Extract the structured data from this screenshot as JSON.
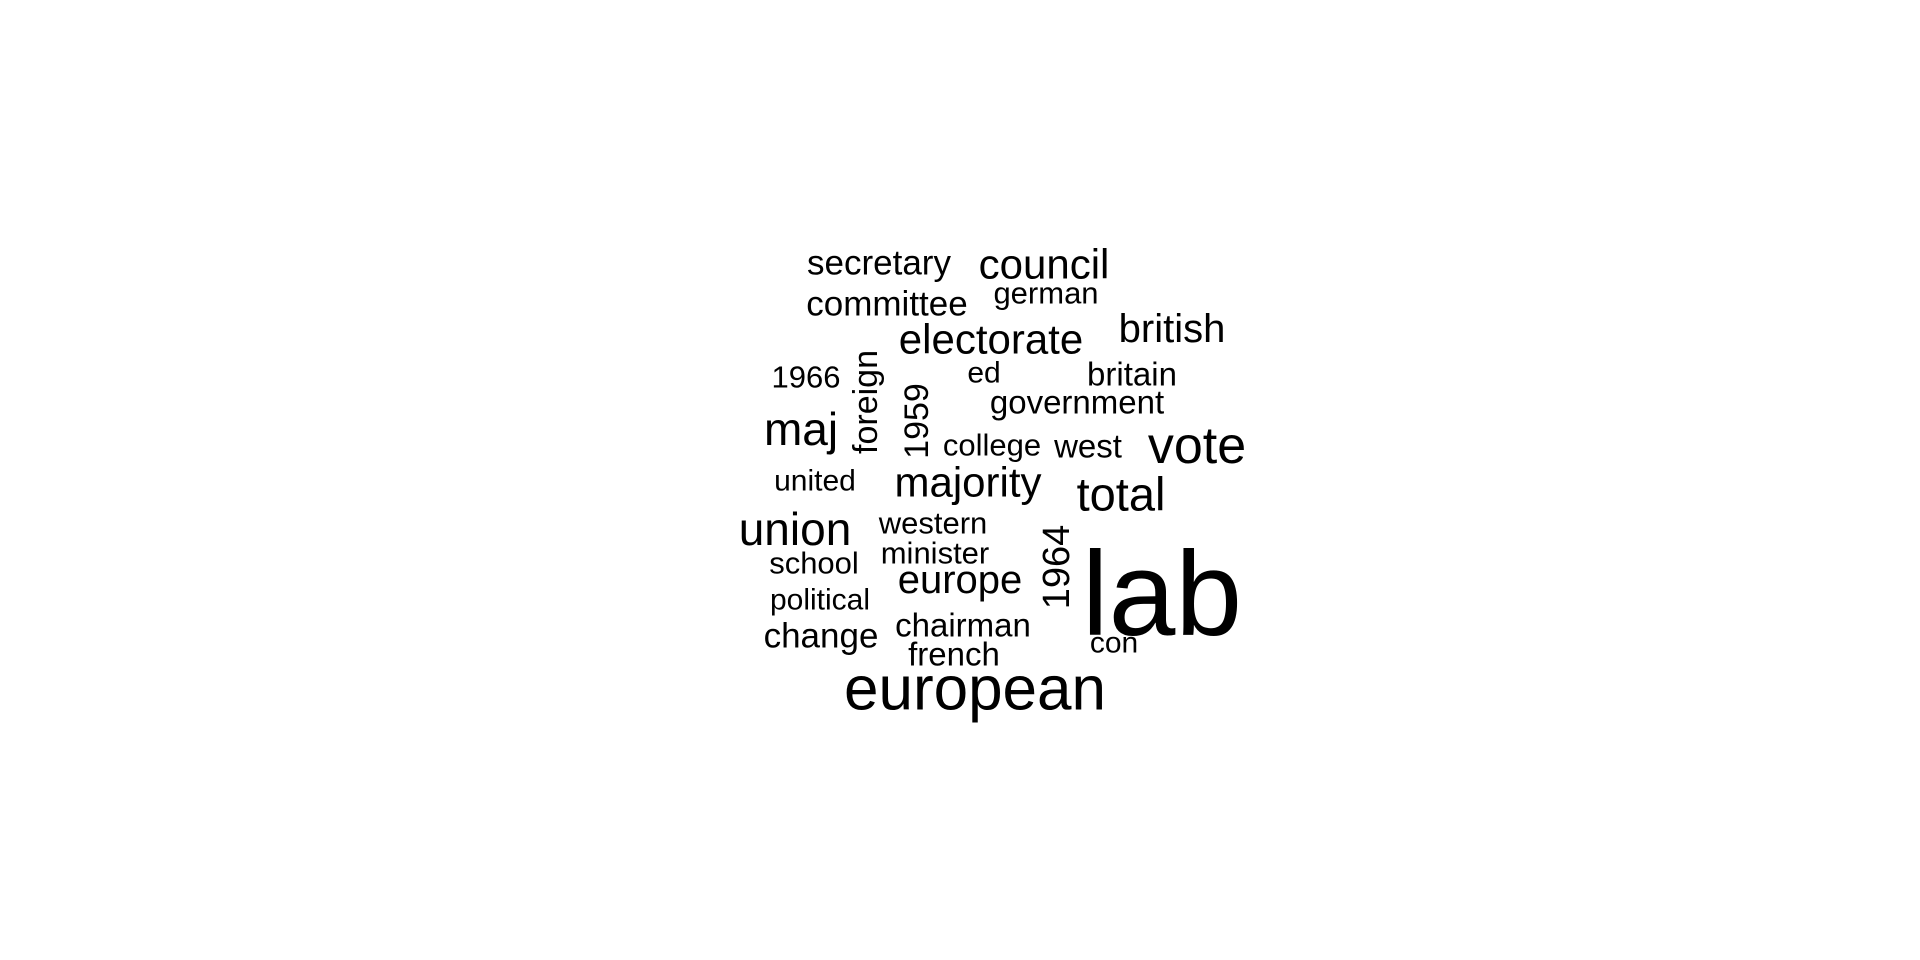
{
  "chart_data": {
    "type": "wordcloud",
    "text_color": "#000000",
    "background_color": "#ffffff",
    "words": [
      {
        "text": "lab",
        "rotated": false
      },
      {
        "text": "european",
        "rotated": false
      },
      {
        "text": "vote",
        "rotated": false
      },
      {
        "text": "council",
        "rotated": false
      },
      {
        "text": "electorate",
        "rotated": false
      },
      {
        "text": "majority",
        "rotated": false
      },
      {
        "text": "total",
        "rotated": false
      },
      {
        "text": "union",
        "rotated": false
      },
      {
        "text": "maj",
        "rotated": false
      },
      {
        "text": "europe",
        "rotated": false
      },
      {
        "text": "british",
        "rotated": false
      },
      {
        "text": "1964",
        "rotated": true
      },
      {
        "text": "secretary",
        "rotated": false
      },
      {
        "text": "committee",
        "rotated": false
      },
      {
        "text": "german",
        "rotated": false
      },
      {
        "text": "government",
        "rotated": false
      },
      {
        "text": "britain",
        "rotated": false
      },
      {
        "text": "foreign",
        "rotated": true
      },
      {
        "text": "1959",
        "rotated": true
      },
      {
        "text": "change",
        "rotated": false
      },
      {
        "text": "chairman",
        "rotated": false
      },
      {
        "text": "west",
        "rotated": false
      },
      {
        "text": "college",
        "rotated": false
      },
      {
        "text": "western",
        "rotated": false
      },
      {
        "text": "minister",
        "rotated": false
      },
      {
        "text": "school",
        "rotated": false
      },
      {
        "text": "french",
        "rotated": false
      },
      {
        "text": "1966",
        "rotated": false
      },
      {
        "text": "ed",
        "rotated": false
      },
      {
        "text": "united",
        "rotated": false
      },
      {
        "text": "political",
        "rotated": false
      },
      {
        "text": "con",
        "rotated": false
      }
    ]
  }
}
